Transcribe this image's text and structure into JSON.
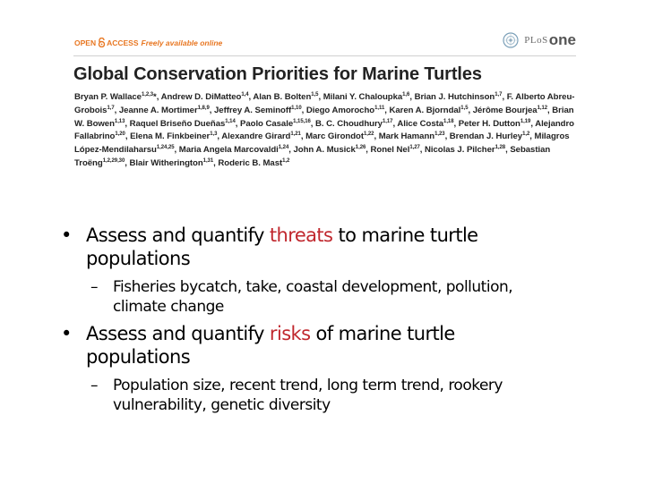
{
  "paper": {
    "open_access_left": "OPEN",
    "open_access_right": "ACCESS",
    "freely_available": "Freely available online",
    "journal_plos": "PLoS",
    "journal_one": "one",
    "title": "Global Conservation Priorities for Marine Turtles",
    "authors": [
      {
        "name": "Bryan P. Wallace",
        "sup": "1,2,3",
        "suffix": "*, "
      },
      {
        "name": "Andrew D. DiMatteo",
        "sup": "1,4",
        "suffix": ", "
      },
      {
        "name": "Alan B. Bolten",
        "sup": "1,5",
        "suffix": ", "
      },
      {
        "name": "Milani Y. Chaloupka",
        "sup": "1,6",
        "suffix": ", "
      },
      {
        "name": "Brian J. Hutchinson",
        "sup": "1,7",
        "suffix": ", "
      },
      {
        "name": "F. Alberto Abreu-Grobois",
        "sup": "1,7",
        "suffix": ", "
      },
      {
        "name": "Jeanne A. Mortimer",
        "sup": "1,8,9",
        "suffix": ", "
      },
      {
        "name": "Jeffrey A. Seminoff",
        "sup": "1,10",
        "suffix": ", "
      },
      {
        "name": "Diego Amorocho",
        "sup": "1,11",
        "suffix": ", "
      },
      {
        "name": "Karen A. Bjorndal",
        "sup": "1,5",
        "suffix": ", "
      },
      {
        "name": "Jérôme Bourjea",
        "sup": "1,12",
        "suffix": ", "
      },
      {
        "name": "Brian W. Bowen",
        "sup": "1,13",
        "suffix": ", "
      },
      {
        "name": "Raquel Briseño Dueñas",
        "sup": "1,14",
        "suffix": ", "
      },
      {
        "name": "Paolo Casale",
        "sup": "1,15,16",
        "suffix": ", "
      },
      {
        "name": "B. C. Choudhury",
        "sup": "1,17",
        "suffix": ", "
      },
      {
        "name": "Alice Costa",
        "sup": "1,18",
        "suffix": ", "
      },
      {
        "name": "Peter H. Dutton",
        "sup": "1,19",
        "suffix": ", "
      },
      {
        "name": "Alejandro Fallabrino",
        "sup": "1,20",
        "suffix": ", "
      },
      {
        "name": "Elena M. Finkbeiner",
        "sup": "1,3",
        "suffix": ", "
      },
      {
        "name": "Alexandre Girard",
        "sup": "1,21",
        "suffix": ", "
      },
      {
        "name": "Marc Girondot",
        "sup": "1,22",
        "suffix": ", "
      },
      {
        "name": "Mark Hamann",
        "sup": "1,23",
        "suffix": ", "
      },
      {
        "name": "Brendan J. Hurley",
        "sup": "1,2",
        "suffix": ", "
      },
      {
        "name": "Milagros López-Mendilaharsu",
        "sup": "1,24,25",
        "suffix": ", "
      },
      {
        "name": "Maria Angela Marcovaldi",
        "sup": "1,24",
        "suffix": ", "
      },
      {
        "name": "John A. Musick",
        "sup": "1,26",
        "suffix": ", "
      },
      {
        "name": "Ronel Nel",
        "sup": "1,27",
        "suffix": ", "
      },
      {
        "name": "Nicolas J. Pilcher",
        "sup": "1,28",
        "suffix": ", "
      },
      {
        "name": "Sebastian Troëng",
        "sup": "1,2,29,30",
        "suffix": ", "
      },
      {
        "name": "Blair Witherington",
        "sup": "1,31",
        "suffix": ", "
      },
      {
        "name": "Roderic B. Mast",
        "sup": "1,2",
        "suffix": ""
      }
    ]
  },
  "bullets": [
    {
      "level": 1,
      "before": "Assess and quantify ",
      "highlight": "threats",
      "after": " to marine turtle populations",
      "line1": "Assess and quantify ",
      "line1_after": " to marine turtle",
      "line2": "populations"
    },
    {
      "level": 2,
      "line1": "Fisheries bycatch, take, coastal development, pollution,",
      "line2": "climate change"
    },
    {
      "level": 1,
      "highlight": "risks",
      "line1": "Assess and quantify ",
      "line1_after": " of marine turtle",
      "line2": "populations"
    },
    {
      "level": 2,
      "line1": "Population size, recent trend, long term trend, rookery",
      "line2": "vulnerability, genetic diversity"
    }
  ],
  "icons": {
    "open_access": "open-lock-icon",
    "journal_emblem": "plos-emblem-icon"
  },
  "colors": {
    "open_access": "#e87722",
    "highlight": "#c0272d"
  }
}
